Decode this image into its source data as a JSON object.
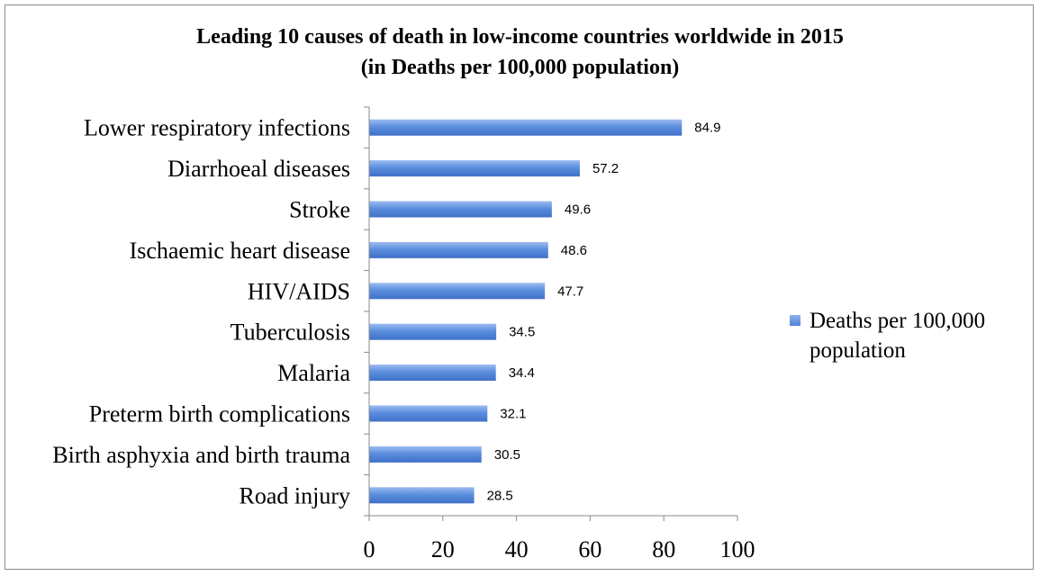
{
  "chart_data": {
    "type": "bar",
    "orientation": "horizontal",
    "title": "Leading 10 causes of death in low-income countries worldwide in 2015",
    "subtitle": "(in Deaths per 100,000 population)",
    "categories": [
      "Lower respiratory infections",
      "Diarrhoeal diseases",
      "Stroke",
      "Ischaemic heart disease",
      "HIV/AIDS",
      "Tuberculosis",
      "Malaria",
      "Preterm birth complications",
      "Birth asphyxia and birth trauma",
      "Road injury"
    ],
    "series": [
      {
        "name": "Deaths per 100,000 population",
        "values": [
          84.9,
          57.2,
          49.6,
          48.6,
          47.7,
          34.5,
          34.4,
          32.1,
          30.5,
          28.5
        ],
        "labels": [
          "84.9",
          "57.2",
          "49.6",
          "48.6",
          "47.7",
          "34.5",
          "34.4",
          "32.1",
          "30.5",
          "28.5"
        ],
        "color": "#4f81d6"
      }
    ],
    "xlim": [
      0,
      100
    ],
    "xticks": [
      0,
      20,
      40,
      60,
      80,
      100
    ],
    "xtick_labels": [
      "0",
      "20",
      "40",
      "60",
      "80",
      "100"
    ],
    "grid": false,
    "legend_position": "right"
  },
  "legend": {
    "label": "Deaths per 100,000 population"
  }
}
